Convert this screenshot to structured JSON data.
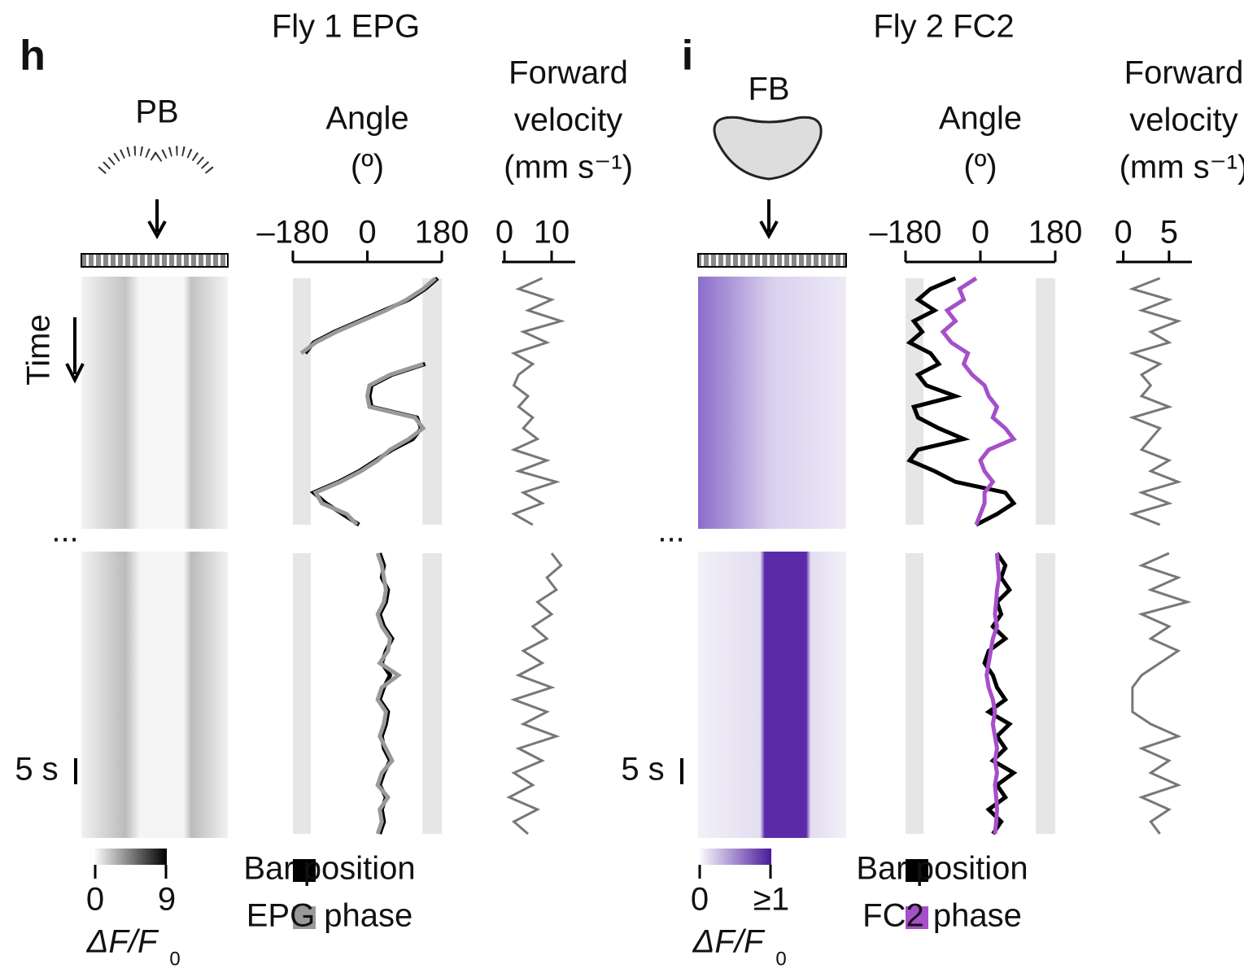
{
  "panels": [
    {
      "label": "h",
      "title": "Fly 1 EPG",
      "region": "PB",
      "time_label": "Time",
      "ellipsis": "...",
      "scale_bar": "5 s",
      "colorbar": {
        "ticks": [
          "0",
          "9"
        ],
        "label": "ΔF/F",
        "label_sub": "0"
      },
      "angle": {
        "title": "Angle",
        "unit": "(º)",
        "xlim": [
          -180,
          180
        ],
        "xticks": [
          {
            "value": -180,
            "label": "–180"
          },
          0,
          180
        ],
        "series": [
          {
            "name": "Bar position",
            "color": "#000000",
            "top": [
              170,
              140,
              100,
              40,
              -20,
              -80,
              -130,
              -150,
              140,
              60,
              10,
              5,
              10,
              120,
              130,
              110,
              60,
              20,
              -20,
              -70,
              -130,
              -100,
              -60,
              -20
            ],
            "bottom": [
              30,
              40,
              35,
              50,
              45,
              30,
              40,
              60,
              45,
              35,
              55,
              40,
              30,
              50,
              45,
              35,
              40,
              55,
              40,
              30,
              45,
              35,
              40,
              30
            ]
          },
          {
            "name": "EPG phase",
            "color": "#999999",
            "top": [
              165,
              135,
              95,
              45,
              -15,
              -75,
              -125,
              -160,
              135,
              55,
              5,
              0,
              5,
              115,
              135,
              100,
              55,
              25,
              -15,
              -65,
              -125,
              -110,
              -50,
              -25
            ],
            "bottom": [
              25,
              35,
              40,
              45,
              40,
              25,
              35,
              55,
              50,
              30,
              75,
              35,
              25,
              45,
              40,
              30,
              45,
              60,
              35,
              25,
              50,
              30,
              35,
              25
            ]
          }
        ]
      },
      "velocity": {
        "title": [
          "Forward",
          "velocity",
          "(mm s⁻¹)"
        ],
        "xlim": [
          0,
          15
        ],
        "xticks": [
          0,
          10
        ],
        "color": "#777777",
        "top": [
          8,
          3,
          10,
          5,
          12,
          4,
          9,
          2,
          6,
          3,
          2,
          5,
          3,
          6,
          4,
          7,
          2,
          9,
          3,
          11,
          4,
          8,
          2,
          6
        ],
        "bottom": [
          10,
          12,
          9,
          11,
          7,
          10,
          6,
          9,
          4,
          8,
          3,
          10,
          2,
          9,
          4,
          11,
          3,
          8,
          2,
          6,
          1,
          7,
          2,
          5
        ]
      }
    },
    {
      "label": "i",
      "title": "Fly 2 FC2",
      "region": "FB",
      "ellipsis": "...",
      "scale_bar": "5 s",
      "colorbar": {
        "ticks": [
          "0",
          "≥1"
        ],
        "label": "ΔF/F",
        "label_sub": "0"
      },
      "angle": {
        "title": "Angle",
        "unit": "(º)",
        "xlim": [
          -180,
          180
        ],
        "xticks": [
          {
            "value": -180,
            "label": "–180"
          },
          0,
          180
        ],
        "series": [
          {
            "name": "Bar position",
            "color": "#000000",
            "top": [
              -60,
              -120,
              -150,
              -110,
              -160,
              -140,
              -170,
              -120,
              -100,
              -150,
              -130,
              -60,
              -160,
              -150,
              -100,
              -40,
              -150,
              -170,
              -110,
              -60,
              60,
              80,
              40,
              -10
            ],
            "bottom": [
              40,
              60,
              50,
              70,
              40,
              50,
              30,
              60,
              20,
              10,
              30,
              40,
              60,
              20,
              70,
              40,
              60,
              30,
              80,
              40,
              60,
              20,
              50,
              30
            ]
          },
          {
            "name": "FC2 phase",
            "color": "#a64fc9",
            "top": [
              -10,
              -50,
              -40,
              -80,
              -60,
              -90,
              -70,
              -30,
              -40,
              -20,
              10,
              20,
              40,
              30,
              60,
              80,
              20,
              0,
              10,
              30,
              10,
              10,
              0,
              -10
            ],
            "bottom": [
              40,
              42,
              45,
              40,
              38,
              35,
              40,
              30,
              25,
              20,
              15,
              20,
              30,
              35,
              30,
              35,
              40,
              35,
              40,
              35,
              38,
              40,
              38,
              35
            ]
          }
        ]
      },
      "velocity": {
        "title": [
          "Forward",
          "velocity",
          "(mm s⁻¹)"
        ],
        "xlim": [
          -0.5,
          7.5
        ],
        "xticks": [
          0,
          5
        ],
        "color": "#777777",
        "top": [
          4,
          1,
          5,
          2,
          6,
          3,
          5,
          1,
          4,
          2,
          3,
          2,
          5,
          1,
          4,
          3,
          2,
          5,
          3,
          6,
          2,
          5,
          1,
          4
        ],
        "bottom": [
          5,
          2,
          6,
          3,
          7,
          2,
          5,
          3,
          6,
          4,
          2,
          1,
          1,
          1,
          3,
          6,
          2,
          5,
          3,
          6,
          2,
          5,
          3,
          4
        ]
      }
    }
  ]
}
